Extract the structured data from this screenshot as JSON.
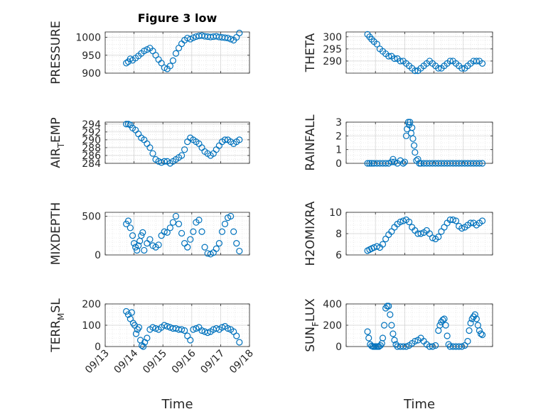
{
  "colors": {
    "marker": "#0072BD",
    "axis": "#262626",
    "grid": "#dcdcdc"
  },
  "chart_data": [
    {
      "type": "scatter",
      "title": "Figure 3 low",
      "ylabel": "PRESSURE",
      "xlabel": "",
      "ylim": [
        900,
        1015
      ],
      "yticks": [
        "900",
        "950",
        "1000"
      ],
      "ytick_values": [
        900,
        950,
        1000
      ],
      "xlim": [
        0,
        5
      ],
      "grid": "on",
      "x": [
        0.73,
        0.8,
        0.87,
        0.95,
        1.05,
        1.15,
        1.25,
        1.35,
        1.45,
        1.55,
        1.65,
        1.75,
        1.85,
        1.95,
        2.05,
        2.15,
        2.25,
        2.35,
        2.45,
        2.55,
        2.65,
        2.75,
        2.85,
        2.95,
        3.05,
        3.15,
        3.25,
        3.35,
        3.45,
        3.55,
        3.65,
        3.75,
        3.85,
        3.95,
        4.05,
        4.15,
        4.25,
        4.35,
        4.45,
        4.55,
        4.65
      ],
      "y": [
        928,
        932,
        940,
        936,
        942,
        948,
        955,
        962,
        966,
        970,
        962,
        950,
        938,
        928,
        915,
        912,
        920,
        935,
        955,
        970,
        982,
        992,
        998,
        995,
        999,
        1002,
        1004,
        1005,
        1003,
        1002,
        1001,
        1002,
        1003,
        1001,
        1000,
        999,
        998,
        995,
        992,
        1000,
        1012
      ]
    },
    {
      "type": "scatter",
      "title": "",
      "ylabel": "THETA",
      "xlabel": "",
      "ylim": [
        285,
        302
      ],
      "yticks": [
        "290",
        "295",
        "300"
      ],
      "ytick_values": [
        290,
        295,
        300
      ],
      "xlim": [
        0,
        5
      ],
      "grid": "on",
      "x": [
        0.73,
        0.8,
        0.87,
        0.95,
        1.05,
        1.15,
        1.25,
        1.35,
        1.45,
        1.55,
        1.65,
        1.75,
        1.85,
        1.95,
        2.05,
        2.15,
        2.25,
        2.35,
        2.45,
        2.55,
        2.65,
        2.75,
        2.85,
        2.95,
        3.05,
        3.15,
        3.25,
        3.35,
        3.45,
        3.55,
        3.65,
        3.75,
        3.85,
        3.95,
        4.05,
        4.15,
        4.25,
        4.35,
        4.45,
        4.55,
        4.65
      ],
      "y": [
        301,
        300,
        299,
        298,
        297,
        295,
        294,
        293,
        292,
        292,
        291,
        291,
        290,
        290,
        289,
        288,
        287,
        286,
        286,
        287,
        288,
        289,
        290,
        289,
        288,
        287,
        287,
        288,
        289,
        290,
        290,
        289,
        288,
        287,
        287,
        288,
        289,
        290,
        290,
        290,
        289
      ]
    },
    {
      "type": "scatter",
      "title": "",
      "ylabel": "AIR_TEMP",
      "ylabel_main": "AIR",
      "ylabel_sub": "T",
      "ylabel_rest": "EMP",
      "xlabel": "",
      "ylim": [
        284,
        294.5
      ],
      "yticks": [
        "284",
        "286",
        "288",
        "290",
        "292",
        "294"
      ],
      "ytick_values": [
        284,
        286,
        288,
        290,
        292,
        294
      ],
      "xlim": [
        0,
        5
      ],
      "grid": "on",
      "x": [
        0.73,
        0.8,
        0.87,
        0.95,
        1.05,
        1.15,
        1.25,
        1.35,
        1.45,
        1.55,
        1.65,
        1.75,
        1.85,
        1.95,
        2.05,
        2.15,
        2.25,
        2.35,
        2.45,
        2.55,
        2.65,
        2.75,
        2.85,
        2.95,
        3.05,
        3.15,
        3.25,
        3.35,
        3.45,
        3.55,
        3.65,
        3.75,
        3.85,
        3.95,
        4.05,
        4.15,
        4.25,
        4.35,
        4.45,
        4.55,
        4.65
      ],
      "y": [
        294,
        294,
        293.8,
        293,
        292.5,
        291.5,
        290.5,
        290,
        289,
        288,
        286.5,
        285,
        284.5,
        284.2,
        284.5,
        284.5,
        284,
        284.5,
        285,
        285.5,
        286,
        287.5,
        289.5,
        290.5,
        290,
        289.5,
        289,
        288,
        287,
        286.5,
        286,
        286.5,
        287.5,
        288.5,
        289.5,
        290,
        290,
        289.5,
        289,
        289.5,
        290
      ]
    },
    {
      "type": "scatter",
      "title": "",
      "ylabel": "RAINFALL",
      "xlabel": "",
      "ylim": [
        0,
        3
      ],
      "yticks": [
        "0",
        "1",
        "2",
        "3"
      ],
      "ytick_values": [
        0,
        1,
        2,
        3
      ],
      "xlim": [
        0,
        5
      ],
      "grid": "on",
      "x": [
        0.73,
        0.8,
        0.87,
        0.95,
        1.05,
        1.15,
        1.25,
        1.35,
        1.45,
        1.55,
        1.6,
        1.65,
        1.75,
        1.85,
        1.95,
        2.0,
        2.05,
        2.08,
        2.12,
        2.15,
        2.18,
        2.22,
        2.25,
        2.28,
        2.32,
        2.35,
        2.4,
        2.45,
        2.5,
        2.55,
        2.65,
        2.75,
        2.85,
        2.95,
        3.05,
        3.15,
        3.25,
        3.35,
        3.45,
        3.55,
        3.65,
        3.75,
        3.85,
        3.95,
        4.05,
        4.15,
        4.25,
        4.35,
        4.45,
        4.55,
        4.65
      ],
      "y": [
        0,
        0,
        0,
        0,
        0,
        0,
        0,
        0,
        0,
        0.1,
        0.3,
        0.1,
        0,
        0.2,
        0,
        0.1,
        2.0,
        2.5,
        3.0,
        2.8,
        3.0,
        2.2,
        2.6,
        1.8,
        1.3,
        0.8,
        0.2,
        0.3,
        0,
        0,
        0,
        0,
        0,
        0,
        0,
        0,
        0,
        0,
        0,
        0,
        0,
        0,
        0,
        0,
        0,
        0,
        0,
        0,
        0,
        0,
        0
      ]
    },
    {
      "type": "scatter",
      "title": "",
      "ylabel": "MIXDEPTH",
      "xlabel": "",
      "ylim": [
        0,
        550
      ],
      "yticks": [
        "0",
        "500"
      ],
      "ytick_values": [
        0,
        500
      ],
      "xlim": [
        0,
        5
      ],
      "grid": "on",
      "x": [
        0.73,
        0.8,
        0.87,
        0.95,
        1.0,
        1.05,
        1.1,
        1.15,
        1.2,
        1.25,
        1.3,
        1.35,
        1.45,
        1.55,
        1.65,
        1.75,
        1.85,
        1.95,
        2.05,
        2.15,
        2.25,
        2.35,
        2.45,
        2.55,
        2.65,
        2.75,
        2.85,
        2.95,
        3.05,
        3.15,
        3.25,
        3.35,
        3.45,
        3.55,
        3.65,
        3.75,
        3.85,
        3.95,
        4.05,
        4.15,
        4.25,
        4.35,
        4.45,
        4.55,
        4.65
      ],
      "y": [
        400,
        440,
        350,
        250,
        150,
        100,
        60,
        120,
        180,
        250,
        290,
        60,
        150,
        200,
        120,
        100,
        130,
        250,
        300,
        290,
        350,
        420,
        500,
        400,
        280,
        150,
        100,
        200,
        300,
        420,
        450,
        300,
        100,
        20,
        10,
        30,
        80,
        150,
        300,
        400,
        480,
        500,
        300,
        150,
        50
      ]
    },
    {
      "type": "scatter",
      "title": "",
      "ylabel": "H2OMIXRA",
      "xlabel": "",
      "ylim": [
        6,
        10
      ],
      "yticks": [
        "6",
        "8",
        "10"
      ],
      "ytick_values": [
        6,
        8,
        10
      ],
      "xlim": [
        0,
        5
      ],
      "grid": "on",
      "x": [
        0.73,
        0.8,
        0.87,
        0.95,
        1.05,
        1.15,
        1.25,
        1.35,
        1.45,
        1.55,
        1.65,
        1.75,
        1.85,
        1.95,
        2.05,
        2.15,
        2.25,
        2.35,
        2.45,
        2.55,
        2.65,
        2.75,
        2.85,
        2.95,
        3.05,
        3.15,
        3.25,
        3.35,
        3.45,
        3.55,
        3.65,
        3.75,
        3.85,
        3.95,
        4.05,
        4.15,
        4.25,
        4.35,
        4.45,
        4.55,
        4.65
      ],
      "y": [
        6.4,
        6.5,
        6.6,
        6.7,
        6.8,
        6.7,
        7.0,
        7.5,
        7.9,
        8.2,
        8.6,
        8.9,
        9.1,
        9.2,
        9.3,
        9.1,
        8.6,
        8.3,
        8.0,
        8.0,
        8.1,
        8.3,
        8.0,
        7.6,
        7.5,
        7.7,
        8.2,
        8.6,
        9.0,
        9.3,
        9.3,
        9.2,
        8.7,
        8.5,
        8.6,
        8.8,
        9.0,
        9.0,
        8.8,
        9.0,
        9.2
      ]
    },
    {
      "type": "scatter",
      "title": "",
      "ylabel": "TERR_MSL",
      "ylabel_main": "TERR",
      "ylabel_sub": "M",
      "ylabel_rest": "SL",
      "xlabel": "Time",
      "ylim": [
        0,
        200
      ],
      "yticks": [
        "0",
        "100",
        "200"
      ],
      "ytick_values": [
        0,
        100,
        200
      ],
      "xlim": [
        0,
        5
      ],
      "grid": "on",
      "x": [
        0.73,
        0.8,
        0.87,
        0.92,
        0.97,
        1.02,
        1.07,
        1.12,
        1.17,
        1.22,
        1.27,
        1.32,
        1.37,
        1.45,
        1.55,
        1.65,
        1.75,
        1.85,
        1.95,
        2.05,
        2.15,
        2.25,
        2.35,
        2.45,
        2.55,
        2.65,
        2.75,
        2.85,
        2.95,
        3.05,
        3.15,
        3.25,
        3.35,
        3.45,
        3.55,
        3.65,
        3.75,
        3.85,
        3.95,
        4.05,
        4.15,
        4.25,
        4.35,
        4.45,
        4.55,
        4.65
      ],
      "y": [
        165,
        150,
        130,
        160,
        110,
        100,
        60,
        80,
        90,
        30,
        5,
        0,
        20,
        40,
        80,
        90,
        85,
        80,
        90,
        100,
        95,
        90,
        85,
        85,
        80,
        80,
        75,
        50,
        30,
        80,
        85,
        90,
        75,
        70,
        65,
        70,
        80,
        85,
        80,
        90,
        95,
        85,
        80,
        70,
        50,
        20
      ],
      "xticks": [
        "09/13",
        "09/14",
        "09/15",
        "09/16",
        "09/17",
        "09/18"
      ],
      "xtick_values": [
        0,
        1,
        2,
        3,
        4,
        5
      ]
    },
    {
      "type": "scatter",
      "title": "",
      "ylabel": "SUN_FLUX",
      "ylabel_main": "SUN",
      "ylabel_sub": "F",
      "ylabel_rest": "LUX",
      "xlabel": "Time",
      "ylim": [
        0,
        400
      ],
      "yticks": [
        "0",
        "200",
        "400"
      ],
      "ytick_values": [
        0,
        200,
        400
      ],
      "xlim": [
        0,
        5
      ],
      "grid": "on",
      "x": [
        0.73,
        0.77,
        0.82,
        0.87,
        0.92,
        0.97,
        1.02,
        1.07,
        1.12,
        1.17,
        1.22,
        1.25,
        1.3,
        1.35,
        1.4,
        1.45,
        1.5,
        1.55,
        1.6,
        1.65,
        1.7,
        1.75,
        1.85,
        1.95,
        2.05,
        2.15,
        2.25,
        2.35,
        2.45,
        2.55,
        2.65,
        2.75,
        2.85,
        2.95,
        3.05,
        3.15,
        3.2,
        3.25,
        3.3,
        3.35,
        3.4,
        3.45,
        3.5,
        3.55,
        3.65,
        3.75,
        3.85,
        3.95,
        4.05,
        4.15,
        4.2,
        4.25,
        4.3,
        4.35,
        4.4,
        4.45,
        4.5,
        4.55,
        4.6,
        4.65
      ],
      "y": [
        140,
        80,
        20,
        5,
        0,
        0,
        0,
        0,
        0,
        10,
        30,
        80,
        200,
        360,
        380,
        380,
        300,
        200,
        120,
        60,
        20,
        0,
        0,
        0,
        0,
        10,
        30,
        50,
        60,
        80,
        50,
        20,
        0,
        0,
        10,
        150,
        200,
        230,
        250,
        260,
        200,
        100,
        20,
        0,
        0,
        0,
        0,
        0,
        10,
        50,
        150,
        220,
        260,
        280,
        300,
        260,
        200,
        150,
        120,
        110
      ]
    }
  ]
}
